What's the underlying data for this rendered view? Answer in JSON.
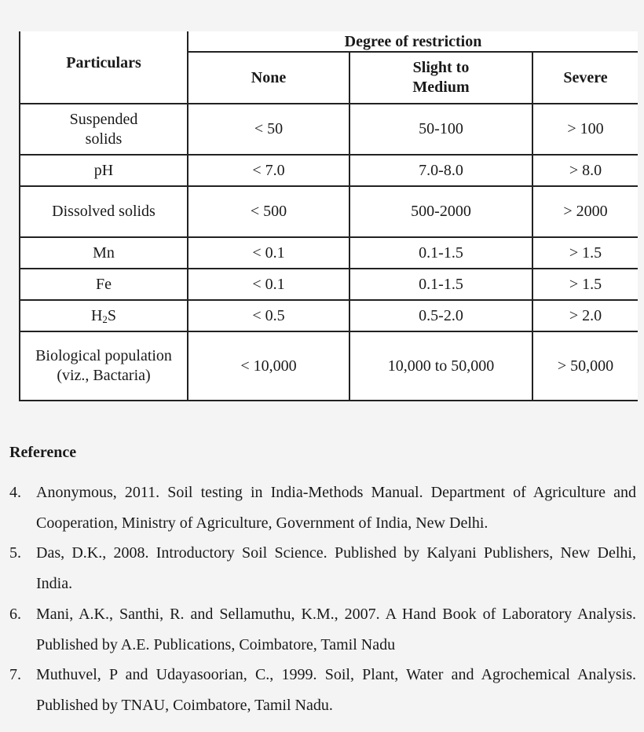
{
  "table": {
    "header_particulars": "Particulars",
    "header_group": "Degree of restriction",
    "header_cols": [
      "None",
      "Slight to Medium",
      "Severe"
    ],
    "rows": [
      {
        "particular": "Suspended solids",
        "none": "< 50",
        "slight": "50-100",
        "severe": "> 100"
      },
      {
        "particular": "pH",
        "none": "< 7.0",
        "slight": "7.0-8.0",
        "severe": "> 8.0"
      },
      {
        "particular": "Dissolved solids",
        "none": "< 500",
        "slight": "500-2000",
        "severe": "> 2000"
      },
      {
        "particular": "Mn",
        "none": "< 0.1",
        "slight": "0.1-1.5",
        "severe": "> 1.5"
      },
      {
        "particular": "Fe",
        "none": "< 0.1",
        "slight": "0.1-1.5",
        "severe": "> 1.5"
      },
      {
        "particular_main": "H",
        "particular_sub": "2",
        "particular_end": "S",
        "none": "< 0.5",
        "slight": "0.5-2.0",
        "severe": "> 2.0"
      },
      {
        "particular": "Biological population (viz., Bactaria)",
        "none": "< 10,000",
        "slight": "10,000 to 50,000",
        "severe": "> 50,000"
      }
    ]
  },
  "references": {
    "title": "Reference",
    "items": [
      {
        "num": "4.",
        "text": "Anonymous, 2011. Soil testing in India-Methods Manual. Department of Agriculture and Cooperation, Ministry of Agriculture, Government of India, New Delhi."
      },
      {
        "num": "5.",
        "text": "Das, D.K., 2008. Introductory Soil Science. Published by Kalyani Publishers, New Delhi, India."
      },
      {
        "num": "6.",
        "text": "Mani, A.K., Santhi, R. and Sellamuthu, K.M., 2007. A Hand Book of Laboratory Analysis. Published by A.E. Publications, Coimbatore, Tamil Nadu"
      },
      {
        "num": "7.",
        "text": "Muthuvel, P and Udayasoorian, C., 1999. Soil, Plant, Water and Agrochemical Analysis. Published by TNAU, Coimbatore, Tamil Nadu."
      }
    ]
  }
}
